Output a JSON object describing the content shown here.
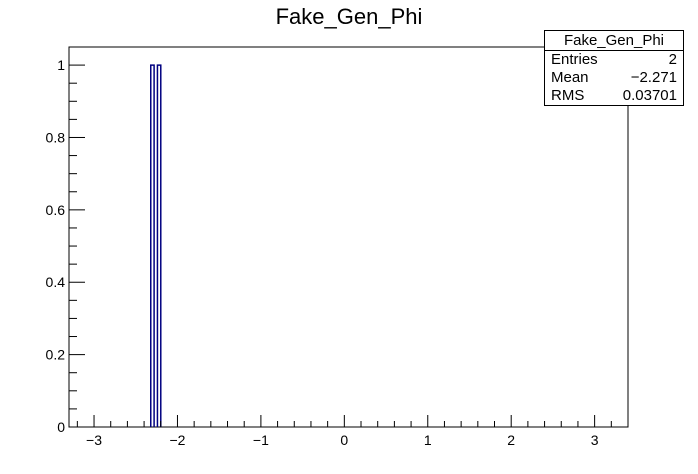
{
  "chart_data": {
    "type": "bar",
    "title": "Fake_Gen_Phi",
    "xlabel": "",
    "ylabel": "",
    "xlim": [
      -3.3,
      3.4
    ],
    "ylim": [
      0,
      1.05
    ],
    "x_ticks": [
      -3,
      -2,
      -1,
      0,
      1,
      2,
      3
    ],
    "x_tick_labels": [
      "−3",
      "−2",
      "−1",
      "0",
      "1",
      "2",
      "3"
    ],
    "y_ticks": [
      0,
      0.2,
      0.4,
      0.6,
      0.8,
      1
    ],
    "y_tick_labels": [
      "0",
      "0.2",
      "0.4",
      "0.6",
      "0.8",
      "1"
    ],
    "bin_width": 0.04,
    "bins": [
      {
        "low": -2.32,
        "high": -2.28,
        "value": 1
      },
      {
        "low": -2.24,
        "high": -2.2,
        "value": 1
      }
    ],
    "line_color": "#000080",
    "grid": false,
    "stats": {
      "title": "Fake_Gen_Phi",
      "rows": [
        {
          "label": "Entries",
          "value": "2"
        },
        {
          "label": "Mean",
          "value": "−2.271"
        },
        {
          "label": "RMS",
          "value": "0.03701"
        }
      ]
    }
  }
}
